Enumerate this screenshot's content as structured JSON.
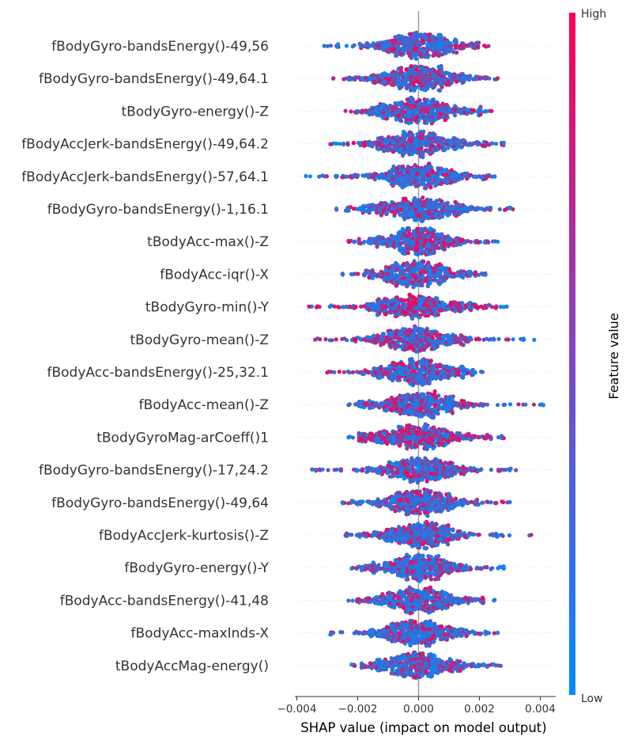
{
  "chart_data": {
    "type": "scatter",
    "subtype": "shap-beeswarm",
    "xlabel": "SHAP value (impact on model output)",
    "xlim": [
      -0.004,
      0.0045
    ],
    "xticks": [
      -0.004,
      -0.002,
      0.0,
      0.002,
      0.004
    ],
    "xtick_labels": [
      "−0.004",
      "−0.002",
      "0.000",
      "0.002",
      "0.004"
    ],
    "colorbar": {
      "title": "Feature value",
      "high_label": "High",
      "low_label": "Low",
      "low_color": "#008bfb",
      "high_color": "#ff0052"
    },
    "features": [
      {
        "name": "fBodyGyro-bandsEnergy()-49,56",
        "min": -0.0031,
        "max": 0.0023,
        "spread": 0.0011,
        "redness": 0.3
      },
      {
        "name": "fBodyGyro-bandsEnergy()-49,64.1",
        "min": -0.0028,
        "max": 0.0026,
        "spread": 0.0012,
        "redness": 0.4
      },
      {
        "name": "tBodyGyro-energy()-Z",
        "min": -0.0024,
        "max": 0.0024,
        "spread": 0.0011,
        "redness": 0.3
      },
      {
        "name": "fBodyAccJerk-bandsEnergy()-49,64.2",
        "min": -0.0029,
        "max": 0.0028,
        "spread": 0.0012,
        "redness": 0.35
      },
      {
        "name": "fBodyAccJerk-bandsEnergy()-57,64.1",
        "min": -0.0037,
        "max": 0.0025,
        "spread": 0.0012,
        "redness": 0.3
      },
      {
        "name": "fBodyGyro-bandsEnergy()-1,16.1",
        "min": -0.0027,
        "max": 0.0031,
        "spread": 0.0012,
        "redness": 0.3
      },
      {
        "name": "tBodyAcc-max()-Z",
        "min": -0.0023,
        "max": 0.0026,
        "spread": 0.001,
        "redness": 0.55
      },
      {
        "name": "fBodyAcc-iqr()-X",
        "min": -0.0025,
        "max": 0.0022,
        "spread": 0.001,
        "redness": 0.35
      },
      {
        "name": "tBodyGyro-min()-Y",
        "min": -0.0036,
        "max": 0.0029,
        "spread": 0.0013,
        "redness": 0.85
      },
      {
        "name": "tBodyGyro-mean()-Z",
        "min": -0.0034,
        "max": 0.0038,
        "spread": 0.0012,
        "redness": 0.6
      },
      {
        "name": "fBodyAcc-bandsEnergy()-25,32.1",
        "min": -0.003,
        "max": 0.0021,
        "spread": 0.0011,
        "redness": 0.3
      },
      {
        "name": "fBodyAcc-mean()-Z",
        "min": -0.0023,
        "max": 0.0041,
        "spread": 0.0011,
        "redness": 0.4
      },
      {
        "name": "tBodyGyroMag-arCoeff()1",
        "min": -0.0023,
        "max": 0.0028,
        "spread": 0.0012,
        "redness": 0.7
      },
      {
        "name": "fBodyGyro-bandsEnergy()-17,24.2",
        "min": -0.0035,
        "max": 0.0032,
        "spread": 0.0011,
        "redness": 0.4
      },
      {
        "name": "fBodyGyro-bandsEnergy()-49,64",
        "min": -0.0025,
        "max": 0.003,
        "spread": 0.0011,
        "redness": 0.4
      },
      {
        "name": "fBodyAccJerk-kurtosis()-Z",
        "min": -0.0024,
        "max": 0.0037,
        "spread": 0.0011,
        "redness": 0.3
      },
      {
        "name": "fBodyGyro-energy()-Y",
        "min": -0.0022,
        "max": 0.0028,
        "spread": 0.0011,
        "redness": 0.35
      },
      {
        "name": "fBodyAcc-bandsEnergy()-41,48",
        "min": -0.0023,
        "max": 0.0025,
        "spread": 0.0011,
        "redness": 0.35
      },
      {
        "name": "fBodyAcc-maxInds-X",
        "min": -0.0029,
        "max": 0.0026,
        "spread": 0.0011,
        "redness": 0.35
      },
      {
        "name": "tBodyAccMag-energy()",
        "min": -0.0022,
        "max": 0.0027,
        "spread": 0.0011,
        "redness": 0.4
      }
    ]
  }
}
